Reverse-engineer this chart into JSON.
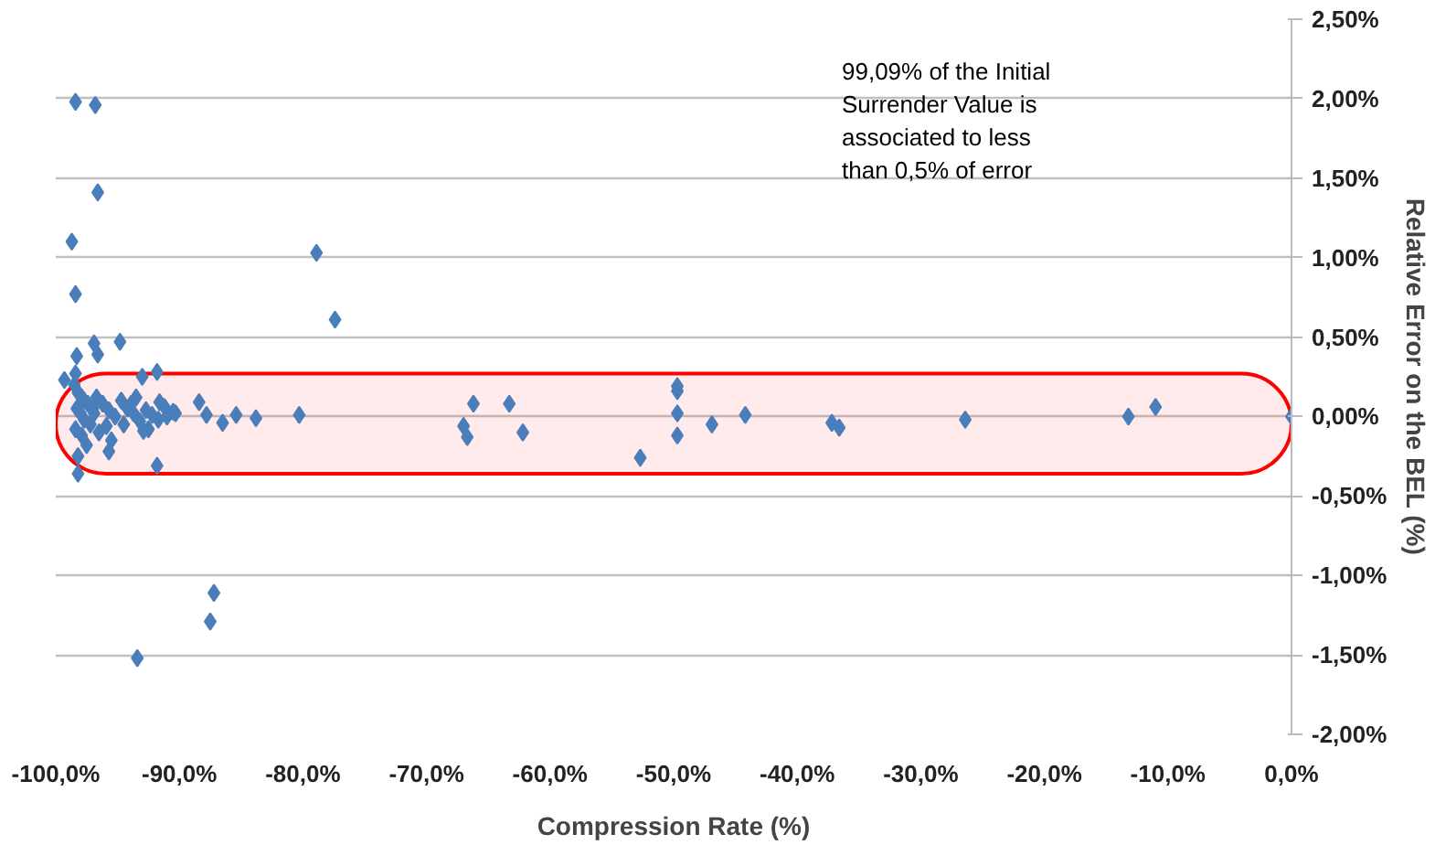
{
  "chart_data": {
    "type": "scatter",
    "xlabel": "Compression Rate (%)",
    "ylabel": "Relative Error on the BEL (%)",
    "x": [
      -98.4,
      -96.8,
      -96.6,
      -98.7,
      -98.4,
      -78.9,
      -77.4,
      -96.9,
      -96.6,
      -94.8,
      -98.3,
      -98.4,
      -93.0,
      -91.8,
      -87.2,
      -87.5,
      -93.4,
      -91.8,
      -98.2,
      -99.3,
      -98.5,
      -98.2,
      -97.9,
      -97.7,
      -97.4,
      -97.0,
      -98.3,
      -98.0,
      -97.7,
      -97.2,
      -98.4,
      -97.9,
      -97.5,
      -98.2,
      -96.7,
      -96.2,
      -95.7,
      -95.2,
      -94.7,
      -94.2,
      -93.7,
      -93.2,
      -96.5,
      -95.9,
      -95.5,
      -94.5,
      -93.9,
      -93.5,
      -92.7,
      -92.2,
      -91.7,
      -91.2,
      -91.0,
      -90.5,
      -96.9,
      -95.7,
      -92.5,
      -90.3,
      -88.4,
      -87.8,
      -86.5,
      -85.4,
      -83.8,
      -80.3,
      -91.6,
      -92.9,
      -67.0,
      -66.7,
      -66.2,
      -63.3,
      -62.2,
      -52.7,
      -49.7,
      -49.7,
      -49.7,
      -49.7,
      -46.9,
      -44.2,
      -37.2,
      -36.6,
      -26.4,
      -13.2,
      -11.0,
      0.0
    ],
    "values": [
      1.98,
      1.96,
      1.41,
      1.1,
      0.77,
      1.03,
      0.61,
      0.46,
      0.39,
      0.47,
      0.38,
      0.27,
      0.25,
      0.28,
      -1.11,
      -1.29,
      -1.52,
      -0.31,
      -0.36,
      0.23,
      0.2,
      0.15,
      0.12,
      0.1,
      0.08,
      0.05,
      0.05,
      0.02,
      -0.02,
      -0.05,
      -0.08,
      -0.12,
      -0.18,
      -0.25,
      0.12,
      0.08,
      0.04,
      0.0,
      0.1,
      0.05,
      0.02,
      -0.03,
      -0.1,
      -0.06,
      -0.15,
      -0.05,
      0.08,
      0.12,
      0.04,
      0.01,
      -0.02,
      0.06,
      0.0,
      0.03,
      0.02,
      -0.22,
      -0.08,
      0.02,
      0.09,
      0.01,
      -0.04,
      0.01,
      -0.01,
      0.01,
      0.09,
      -0.09,
      -0.06,
      -0.13,
      0.08,
      0.08,
      -0.1,
      -0.26,
      0.19,
      0.16,
      0.02,
      -0.12,
      -0.05,
      0.01,
      -0.04,
      -0.07,
      -0.02,
      0.0,
      0.06,
      0.0
    ],
    "color": "#4a7ebb",
    "marker": "diamond",
    "xlim": [
      -100,
      0
    ],
    "xticks": [
      {
        "value": -100,
        "label": "-100,0%"
      },
      {
        "value": -90,
        "label": "-90,0%"
      },
      {
        "value": -80,
        "label": "-80,0%"
      },
      {
        "value": -70,
        "label": "-70,0%"
      },
      {
        "value": -60,
        "label": "-60,0%"
      },
      {
        "value": -50,
        "label": "-50,0%"
      },
      {
        "value": -40,
        "label": "-40,0%"
      },
      {
        "value": -30,
        "label": "-30,0%"
      },
      {
        "value": -20,
        "label": "-20,0%"
      },
      {
        "value": -10,
        "label": "-10,0%"
      },
      {
        "value": 0,
        "label": "0,0%"
      }
    ],
    "ylim": [
      -2,
      2.5
    ],
    "yticks": [
      {
        "value": -2,
        "label": "-2,00%"
      },
      {
        "value": -1.5,
        "label": "-1,50%"
      },
      {
        "value": -1,
        "label": "-1,00%"
      },
      {
        "value": -0.5,
        "label": "-0,50%"
      },
      {
        "value": 0,
        "label": "0,00%"
      },
      {
        "value": 0.5,
        "label": "0,50%"
      },
      {
        "value": 1,
        "label": "1,00%"
      },
      {
        "value": 1.5,
        "label": "1,50%"
      },
      {
        "value": 2,
        "label": "2,00%"
      },
      {
        "value": 2.5,
        "label": "2,50%"
      }
    ],
    "grid": "y",
    "bands": [
      {
        "axis": "y",
        "from": -0.36,
        "to": 0.27,
        "color": "#ff0000"
      }
    ],
    "annotations": [
      "99,09% of the Initial Surrender Value is associated to less than 0,5% of error"
    ]
  }
}
